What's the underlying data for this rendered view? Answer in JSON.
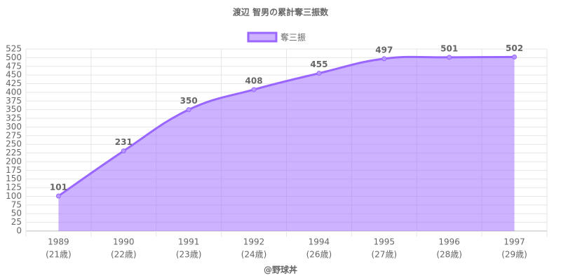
{
  "chart_data": {
    "type": "area",
    "title": "渡辺 智男の累計奪三振数",
    "categories": [
      [
        "1989",
        "(21歳)"
      ],
      [
        "1990",
        "(22歳)"
      ],
      [
        "1991",
        "(23歳)"
      ],
      [
        "1992",
        "(24歳)"
      ],
      [
        "1994",
        "(26歳)"
      ],
      [
        "1995",
        "(27歳)"
      ],
      [
        "1996",
        "(28歳)"
      ],
      [
        "1997",
        "(29歳)"
      ]
    ],
    "series": [
      {
        "name": "奪三振",
        "color": "#9966ff",
        "values": [
          101,
          231,
          350,
          408,
          455,
          497,
          501,
          502
        ]
      }
    ],
    "ylim": [
      0,
      525
    ],
    "yticks": [
      0,
      25,
      50,
      75,
      100,
      125,
      150,
      175,
      200,
      225,
      250,
      275,
      300,
      325,
      350,
      375,
      400,
      425,
      450,
      475,
      500,
      525
    ],
    "grid": true,
    "legend": "top",
    "annotation": "@野球丼"
  }
}
